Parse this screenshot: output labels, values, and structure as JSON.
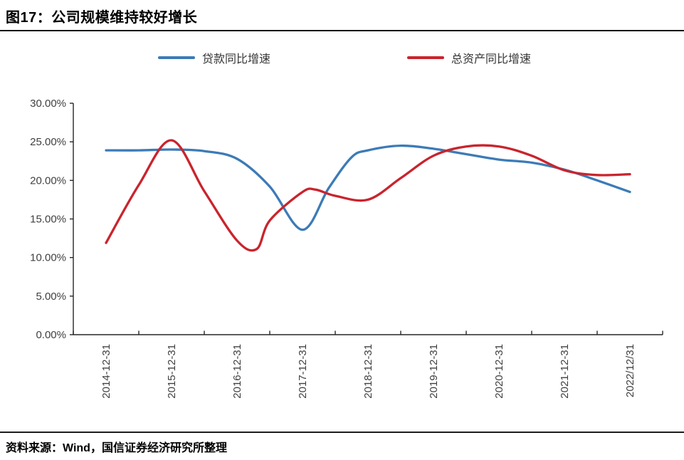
{
  "page": {
    "source_note": "资料来源：Wind，国信证券经济研究所整理"
  },
  "chart_data": {
    "type": "line",
    "title": "图17：公司规模维持较好增长",
    "xlabel": "",
    "ylabel": "",
    "grid": false,
    "legend_position": "top",
    "x_axis": {
      "tick_labels": [
        "2014-12-31",
        "2015-12-31",
        "2016-12-31",
        "2017-12-31",
        "2018-12-31",
        "2019-12-31",
        "2020-12-31",
        "2021-12-31",
        "2022/12/31"
      ],
      "note": "series x values are in year-index units: 0 = 2014-12-31 … 8 = 2022/12/31"
    },
    "y_axis": {
      "min": 0,
      "max": 30,
      "step": 5,
      "tick_labels": [
        "30.00%",
        "25.00%",
        "20.00%",
        "15.00%",
        "10.00%",
        "5.00%",
        "0.00%"
      ],
      "unit": "percent"
    },
    "series": [
      {
        "name": "贷款同比增速",
        "color": "#3C7BB7",
        "x": [
          0,
          0.5,
          1,
          1.5,
          2,
          2.5,
          3,
          3.4,
          3.75,
          4,
          4.5,
          5,
          5.5,
          6,
          6.5,
          7,
          7.5,
          8
        ],
        "values": [
          23.9,
          23.9,
          24.0,
          23.8,
          22.8,
          19.2,
          13.6,
          19.0,
          23.0,
          23.9,
          24.5,
          24.1,
          23.4,
          22.7,
          22.3,
          21.4,
          20.0,
          18.5
        ]
      },
      {
        "name": "总资产同比增速",
        "color": "#C9242D",
        "x": [
          0,
          0.5,
          1,
          1.5,
          2,
          2.3,
          2.5,
          3,
          3.2,
          3.5,
          4,
          4.5,
          5,
          5.5,
          6,
          6.5,
          7,
          7.5,
          8
        ],
        "values": [
          11.9,
          19.4,
          25.2,
          18.6,
          12.2,
          11.1,
          14.8,
          18.5,
          18.8,
          18.0,
          17.5,
          20.3,
          23.2,
          24.4,
          24.4,
          23.2,
          21.3,
          20.7,
          20.8
        ]
      }
    ]
  }
}
